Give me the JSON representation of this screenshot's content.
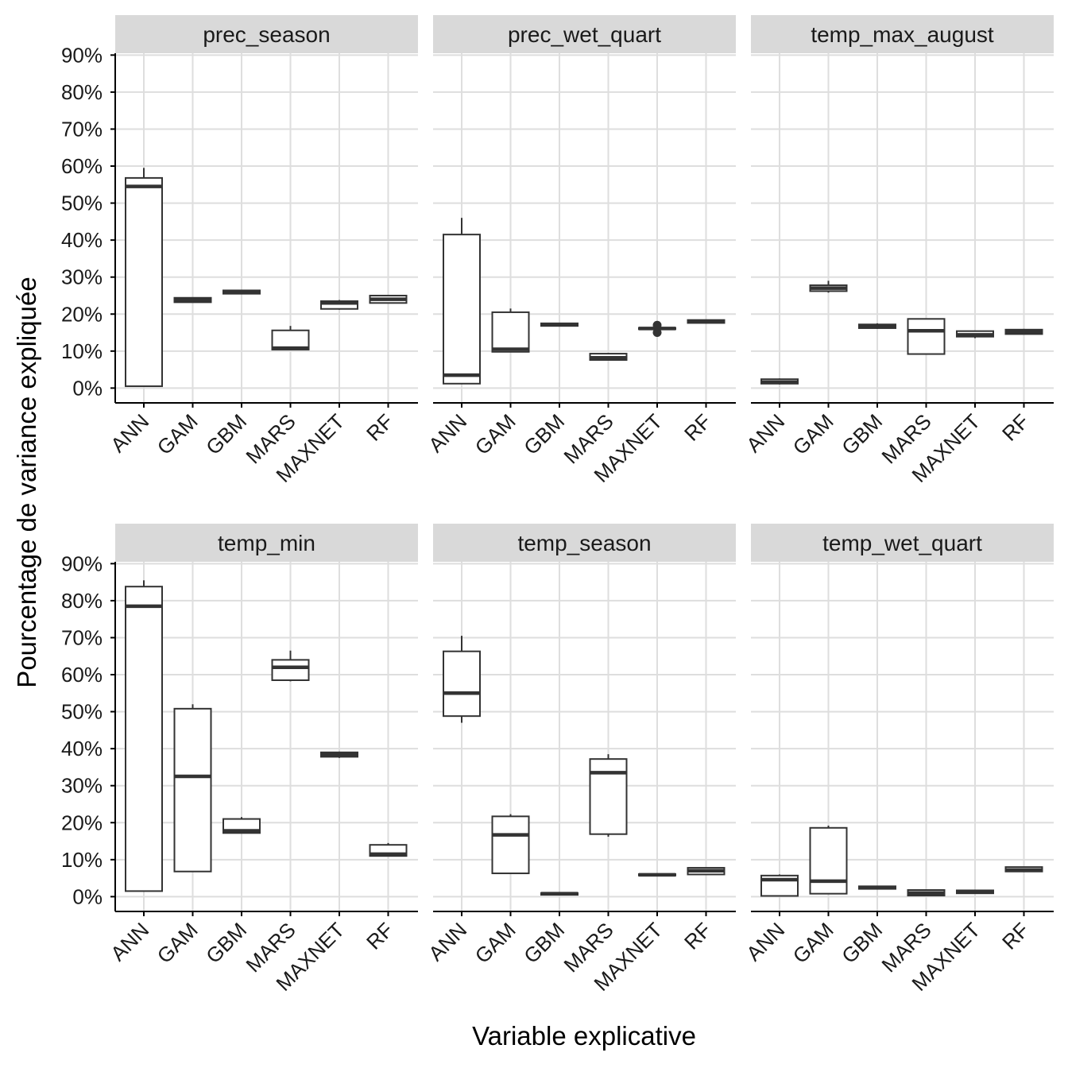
{
  "chart_data": {
    "type": "boxplot",
    "layout": "facet-grid-2x3",
    "xlabel": "Variable explicative",
    "ylabel": "Pourcentage de variance expliquée",
    "ylim": [
      0,
      90
    ],
    "y_ticks": [
      0,
      10,
      20,
      30,
      40,
      50,
      60,
      70,
      80,
      90
    ],
    "y_tick_labels": [
      "0%",
      "10%",
      "20%",
      "30%",
      "40%",
      "50%",
      "60%",
      "70%",
      "80%",
      "90%"
    ],
    "categories": [
      "ANN",
      "GAM",
      "GBM",
      "MARS",
      "MAXNET",
      "RF"
    ],
    "grid": true,
    "colors": {
      "strip_bg": "#d9d9d9",
      "grid": "#dedede",
      "box_line": "#333333",
      "axis": "#000000"
    },
    "panels": [
      {
        "title": "prec_season",
        "boxes": [
          {
            "cat": "ANN",
            "min": 0.5,
            "q1": 0.5,
            "median": 54.5,
            "q3": 56.8,
            "max": 59.5
          },
          {
            "cat": "GAM",
            "min": 23.2,
            "q1": 23.2,
            "median": 23.8,
            "q3": 24.4,
            "max": 24.4
          },
          {
            "cat": "GBM",
            "min": 25.5,
            "q1": 25.5,
            "median": 26.0,
            "q3": 26.4,
            "max": 26.5
          },
          {
            "cat": "MARS",
            "min": 10.4,
            "q1": 10.4,
            "median": 10.8,
            "q3": 15.6,
            "max": 16.8
          },
          {
            "cat": "MAXNET",
            "min": 21.2,
            "q1": 21.4,
            "median": 23.0,
            "q3": 23.5,
            "max": 23.8
          },
          {
            "cat": "RF",
            "min": 23.0,
            "q1": 23.0,
            "median": 24.0,
            "q3": 25.0,
            "max": 25.0
          }
        ],
        "outliers": []
      },
      {
        "title": "prec_wet_quart",
        "boxes": [
          {
            "cat": "ANN",
            "min": 1.2,
            "q1": 1.2,
            "median": 3.5,
            "q3": 41.5,
            "max": 46.0
          },
          {
            "cat": "GAM",
            "min": 9.8,
            "q1": 9.8,
            "median": 10.5,
            "q3": 20.5,
            "max": 21.5
          },
          {
            "cat": "GBM",
            "min": 16.8,
            "q1": 16.8,
            "median": 17.2,
            "q3": 17.5,
            "max": 17.5
          },
          {
            "cat": "MARS",
            "min": 7.5,
            "q1": 7.6,
            "median": 8.2,
            "q3": 9.3,
            "max": 9.5
          },
          {
            "cat": "MAXNET",
            "min": 15.8,
            "q1": 15.9,
            "median": 16.1,
            "q3": 16.3,
            "max": 16.5
          },
          {
            "cat": "RF",
            "min": 17.5,
            "q1": 17.6,
            "median": 18.0,
            "q3": 18.4,
            "max": 18.5
          }
        ],
        "outliers": [
          {
            "cat": "MAXNET",
            "value": 15.0
          },
          {
            "cat": "MAXNET",
            "value": 17.0
          }
        ]
      },
      {
        "title": "temp_max_august",
        "boxes": [
          {
            "cat": "ANN",
            "min": 1.0,
            "q1": 1.2,
            "median": 1.6,
            "q3": 2.4,
            "max": 2.6
          },
          {
            "cat": "GAM",
            "min": 25.8,
            "q1": 26.2,
            "median": 27.0,
            "q3": 27.8,
            "max": 29.0
          },
          {
            "cat": "GBM",
            "min": 16.0,
            "q1": 16.2,
            "median": 16.7,
            "q3": 17.2,
            "max": 17.5
          },
          {
            "cat": "MARS",
            "min": 9.2,
            "q1": 9.2,
            "median": 15.5,
            "q3": 18.7,
            "max": 18.7
          },
          {
            "cat": "MAXNET",
            "min": 13.5,
            "q1": 13.9,
            "median": 14.4,
            "q3": 15.4,
            "max": 15.5
          },
          {
            "cat": "RF",
            "min": 14.5,
            "q1": 14.6,
            "median": 15.2,
            "q3": 15.8,
            "max": 16.0
          }
        ],
        "outliers": []
      },
      {
        "title": "temp_min",
        "boxes": [
          {
            "cat": "ANN",
            "min": 1.5,
            "q1": 1.5,
            "median": 78.5,
            "q3": 83.8,
            "max": 85.5
          },
          {
            "cat": "GAM",
            "min": 6.8,
            "q1": 6.8,
            "median": 32.5,
            "q3": 50.8,
            "max": 52.0
          },
          {
            "cat": "GBM",
            "min": 17.2,
            "q1": 17.2,
            "median": 17.8,
            "q3": 21.0,
            "max": 21.5
          },
          {
            "cat": "MARS",
            "min": 58.2,
            "q1": 58.5,
            "median": 62.0,
            "q3": 64.0,
            "max": 66.5
          },
          {
            "cat": "MAXNET",
            "min": 37.5,
            "q1": 37.8,
            "median": 38.4,
            "q3": 39.0,
            "max": 39.2
          },
          {
            "cat": "RF",
            "min": 11.0,
            "q1": 11.0,
            "median": 11.5,
            "q3": 14.0,
            "max": 14.5
          }
        ],
        "outliers": []
      },
      {
        "title": "temp_season",
        "boxes": [
          {
            "cat": "ANN",
            "min": 47.0,
            "q1": 48.8,
            "median": 55.0,
            "q3": 66.3,
            "max": 70.5
          },
          {
            "cat": "GAM",
            "min": 6.3,
            "q1": 6.3,
            "median": 16.7,
            "q3": 21.7,
            "max": 22.3
          },
          {
            "cat": "GBM",
            "min": 0.5,
            "q1": 0.5,
            "median": 0.8,
            "q3": 1.0,
            "max": 1.0
          },
          {
            "cat": "MARS",
            "min": 16.2,
            "q1": 16.9,
            "median": 33.5,
            "q3": 37.2,
            "max": 38.5
          },
          {
            "cat": "MAXNET",
            "min": 5.7,
            "q1": 5.7,
            "median": 5.9,
            "q3": 6.1,
            "max": 6.1
          },
          {
            "cat": "RF",
            "min": 6.0,
            "q1": 6.0,
            "median": 7.0,
            "q3": 7.8,
            "max": 7.8
          }
        ],
        "outliers": []
      },
      {
        "title": "temp_wet_quart",
        "boxes": [
          {
            "cat": "ANN",
            "min": 0.2,
            "q1": 0.2,
            "median": 4.6,
            "q3": 5.7,
            "max": 6.0
          },
          {
            "cat": "GAM",
            "min": 0.8,
            "q1": 0.8,
            "median": 4.2,
            "q3": 18.6,
            "max": 19.2
          },
          {
            "cat": "GBM",
            "min": 2.1,
            "q1": 2.1,
            "median": 2.5,
            "q3": 2.8,
            "max": 2.8
          },
          {
            "cat": "MARS",
            "min": 0.3,
            "q1": 0.3,
            "median": 1.0,
            "q3": 1.8,
            "max": 1.8
          },
          {
            "cat": "MAXNET",
            "min": 0.9,
            "q1": 0.9,
            "median": 1.3,
            "q3": 1.7,
            "max": 1.7
          },
          {
            "cat": "RF",
            "min": 6.8,
            "q1": 6.8,
            "median": 7.2,
            "q3": 8.0,
            "max": 8.0
          }
        ],
        "outliers": []
      }
    ]
  }
}
